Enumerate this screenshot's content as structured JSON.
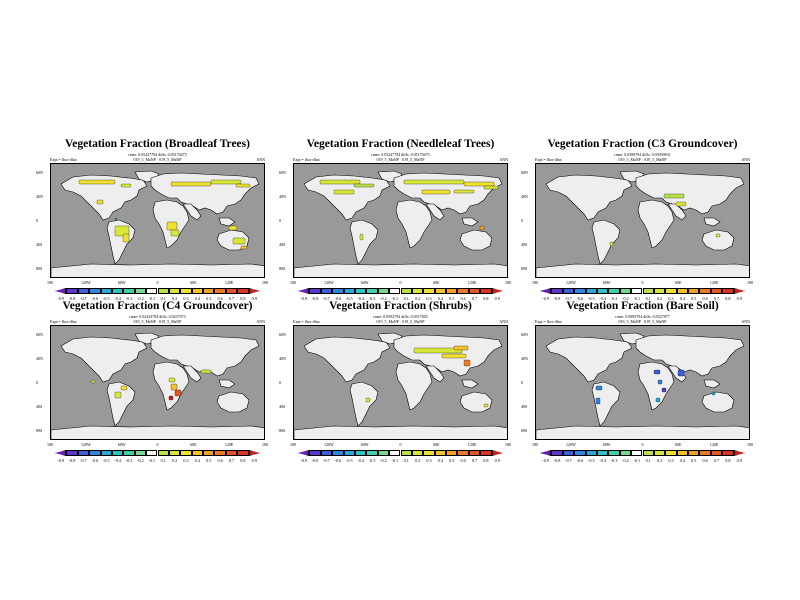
{
  "colorbar": {
    "labels": [
      "-0.9",
      "-0.8",
      "-0.7",
      "-0.6",
      "-0.5",
      "-0.4",
      "-0.3",
      "-0.2",
      "-0.1",
      "0.1",
      "0.2",
      "0.3",
      "0.4",
      "0.5",
      "0.6",
      "0.7",
      "0.8",
      "0.9"
    ],
    "colors": [
      "#6a1ab3",
      "#5b38c9",
      "#3b5fd9",
      "#2f86e0",
      "#28a8d8",
      "#2cc4c4",
      "#3fd1a6",
      "#78d68e",
      "#ffffff",
      "#b7e04a",
      "#d8e638",
      "#f0e030",
      "#f5c02a",
      "#f2a028",
      "#ee7a26",
      "#e65424",
      "#d93220",
      "#c81e1e"
    ]
  },
  "axes": {
    "lat_labels": [
      "60N",
      "40N",
      "0",
      "40S",
      "80S"
    ],
    "lon_labels": [
      "180",
      "120W",
      "60W",
      "0",
      "60E",
      "120E",
      "180"
    ]
  },
  "panels": [
    {
      "title": "Vegetation Fraction (Broadleaf Trees)",
      "meta_line1": "rmse: 0.05247794 diffs: 0.05170475",
      "meta_line2": "019_5_MaNP · 019_5_MaNP",
      "left_label": "Expt = flux-dlux",
      "right_label": "ANN",
      "palette_key": "teal"
    },
    {
      "title": "Vegetation Fraction (Needleleaf Trees)",
      "meta_line1": "rmse: 0.05247794 diffs: 0.05170475",
      "meta_line2": "019_5_MaNP · 019_5_MaNP",
      "left_label": "Expt = flux-dlux",
      "right_label": "ANN",
      "palette_key": "yellowgreen"
    },
    {
      "title": "Vegetation Fraction (C3 Groundcover)",
      "meta_line1": "rmse: 0.0398794 diffs: 0.03939631",
      "meta_line2": "019_5_MaNP · 019_5_MaNP",
      "left_label": "Expt = flux-dlux",
      "right_label": "ANN",
      "palette_key": "lime"
    },
    {
      "title": "Vegetation Fraction (C4 Groundcover)",
      "meta_line1": "rmse: 0.02434794 diffs: 0.0237073",
      "meta_line2": "019_5_MaNP · 019_5_MaNP",
      "left_label": "Expt = flux-dlux",
      "right_label": "ANN",
      "palette_key": "mixed"
    },
    {
      "title": "Vegetation Fraction (Shrubs)",
      "meta_line1": "rmse: 0.0592794 diffs: 0.0517845",
      "meta_line2": "019_5_MaNP · 019_5_MaNP",
      "left_label": "Expt = flux-dlux",
      "right_label": "ANN",
      "palette_key": "greenyellow"
    },
    {
      "title": "Vegetation Fraction (Bare Soil)",
      "meta_line1": "rmse: 0.0693794 diffs: 0.0527877",
      "meta_line2": "019_5_MaNP · 019_5_MaNP",
      "left_label": "Expt = flux-dlux",
      "right_label": "ANN",
      "palette_key": "blue"
    }
  ]
}
